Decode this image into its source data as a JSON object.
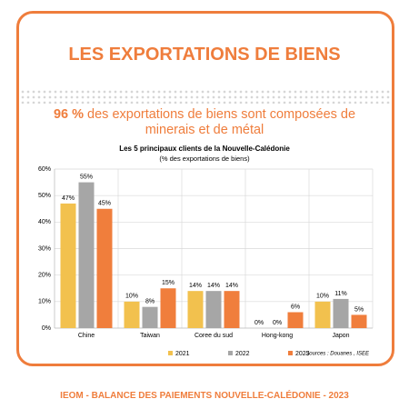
{
  "header": {
    "title": "LES EXPORTATIONS DE BIENS",
    "highlight": "96 %",
    "text": "des exportations de biens sont composées de minerais et de métal"
  },
  "chart_data": {
    "type": "bar",
    "title": "Les 5 principaux clients de la Nouvelle-Calédonie",
    "subtitle": "(% des exportations de biens)",
    "categories": [
      "Chine",
      "Taiwan",
      "Coree du sud",
      "Hong-kong",
      "Japon"
    ],
    "series": [
      {
        "name": "2021",
        "color": "#f2c14e",
        "values": [
          47,
          10,
          14,
          0,
          10
        ],
        "value_labels": [
          "47%",
          "10%",
          "14%",
          "0%",
          "10%"
        ]
      },
      {
        "name": "2022",
        "color": "#a6a6a6",
        "values": [
          55,
          8,
          14,
          0,
          11
        ],
        "value_labels": [
          "55%",
          "8%",
          "14%",
          "0%",
          "11%"
        ]
      },
      {
        "name": "2023",
        "color": "#f07e3c",
        "values": [
          45,
          15,
          14,
          6,
          5
        ],
        "value_labels": [
          "45%",
          "15%",
          "14%",
          "6%",
          "5%"
        ]
      }
    ],
    "ylim": [
      0,
      60
    ],
    "yticks": [
      {
        "value": 0,
        "label": "0%"
      },
      {
        "value": 10,
        "label": "10%"
      },
      {
        "value": 20,
        "label": "20%"
      },
      {
        "value": 30,
        "label": "30%"
      },
      {
        "value": 40,
        "label": "40%"
      },
      {
        "value": 50,
        "label": "50%"
      },
      {
        "value": 60,
        "label": "60%"
      }
    ],
    "grid": true,
    "legend": "bottom",
    "source": "Sources : Douanes , ISEE"
  },
  "footer": "IEOM - BALANCE DES PAIEMENTS NOUVELLE-CALÉDONIE - 2023"
}
